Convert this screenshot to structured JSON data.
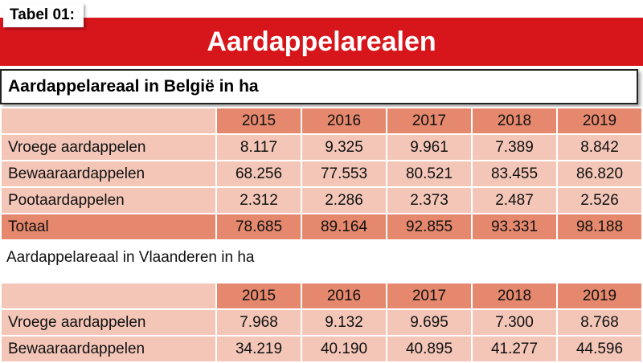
{
  "tag": "Tabel 01:",
  "banner_title": "Aardappelarealen",
  "section1": {
    "title": "Aardappelareaal in België in ha",
    "years": [
      "2015",
      "2016",
      "2017",
      "2018",
      "2019"
    ],
    "rows": [
      {
        "label": "Vroege aardappelen",
        "values": [
          "8.117",
          "9.325",
          "9.961",
          "7.389",
          "8.842"
        ]
      },
      {
        "label": "Bewaaraardappelen",
        "values": [
          "68.256",
          "77.553",
          "80.521",
          "83.455",
          "86.820"
        ]
      },
      {
        "label": "Pootaardappelen",
        "values": [
          "2.312",
          "2.286",
          "2.373",
          "2.487",
          "2.526"
        ]
      }
    ],
    "total": {
      "label": "Totaal",
      "values": [
        "78.685",
        "89.164",
        "92.855",
        "93.331",
        "98.188"
      ]
    }
  },
  "section2": {
    "title": "Aardappelareaal in Vlaanderen in ha",
    "years": [
      "2015",
      "2016",
      "2017",
      "2018",
      "2019"
    ],
    "rows": [
      {
        "label": "Vroege aardappelen",
        "values": [
          "7.968",
          "9.132",
          "9.695",
          "7.300",
          "8.768"
        ]
      },
      {
        "label": "Bewaaraardappelen",
        "values": [
          "34.219",
          "40.190",
          "40.895",
          "41.277",
          "44.596"
        ]
      }
    ]
  }
}
